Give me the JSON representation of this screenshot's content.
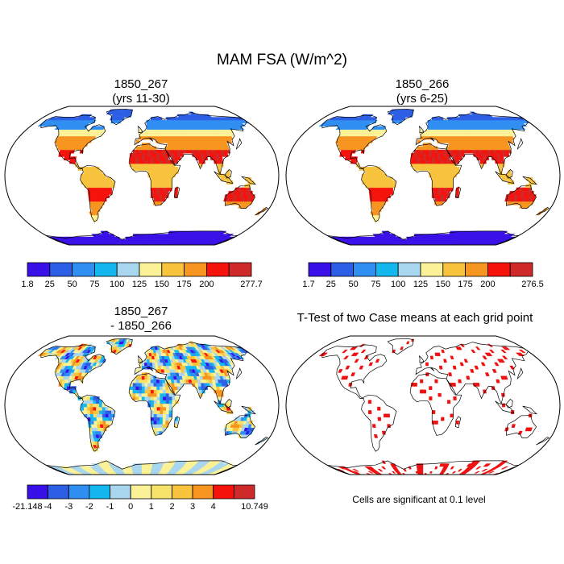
{
  "title": "MAM FSA (W/m^2)",
  "panels": [
    {
      "id": "case1",
      "title_line1": "1850_267",
      "title_line2": "(yrs 11-30)",
      "colorbar": {
        "labels": [
          "1.8",
          "25",
          "50",
          "75",
          "100",
          "125",
          "150",
          "175",
          "200",
          "277.7"
        ],
        "colors": [
          "#3a10e8",
          "#2d5fe6",
          "#2f8ef2",
          "#15b8ee",
          "#a8d6ee",
          "#fbf196",
          "#f8c33d",
          "#f6951f",
          "#f5130c",
          "#ce2a2a"
        ]
      }
    },
    {
      "id": "case2",
      "title_line1": "1850_266",
      "title_line2": "(yrs 6-25)",
      "colorbar": {
        "labels": [
          "1.7",
          "25",
          "50",
          "75",
          "100",
          "125",
          "150",
          "175",
          "200",
          "276.5"
        ],
        "colors": [
          "#3a10e8",
          "#2d5fe6",
          "#2f8ef2",
          "#15b8ee",
          "#a8d6ee",
          "#fbf196",
          "#f8c33d",
          "#f6951f",
          "#f5130c",
          "#ce2a2a"
        ]
      }
    },
    {
      "id": "diff",
      "title_line1": "1850_267",
      "title_line2": "- 1850_266",
      "colorbar": {
        "labels": [
          "-21.148",
          "-4",
          "-3",
          "-2",
          "-1",
          "0",
          "1",
          "2",
          "3",
          "4",
          "10.749"
        ],
        "colors": [
          "#3a10e8",
          "#2d5fe6",
          "#2f8ef2",
          "#15b8ee",
          "#a8d6ee",
          "#fbf196",
          "#f8e36a",
          "#f8c33d",
          "#f6951f",
          "#f5130c",
          "#ce2a2a"
        ]
      }
    },
    {
      "id": "ttest",
      "title_line1": "T-Test of two Case means at each grid point",
      "note": "Cells are significant at 0.1 level",
      "significant_color": "#ee1111"
    }
  ]
}
